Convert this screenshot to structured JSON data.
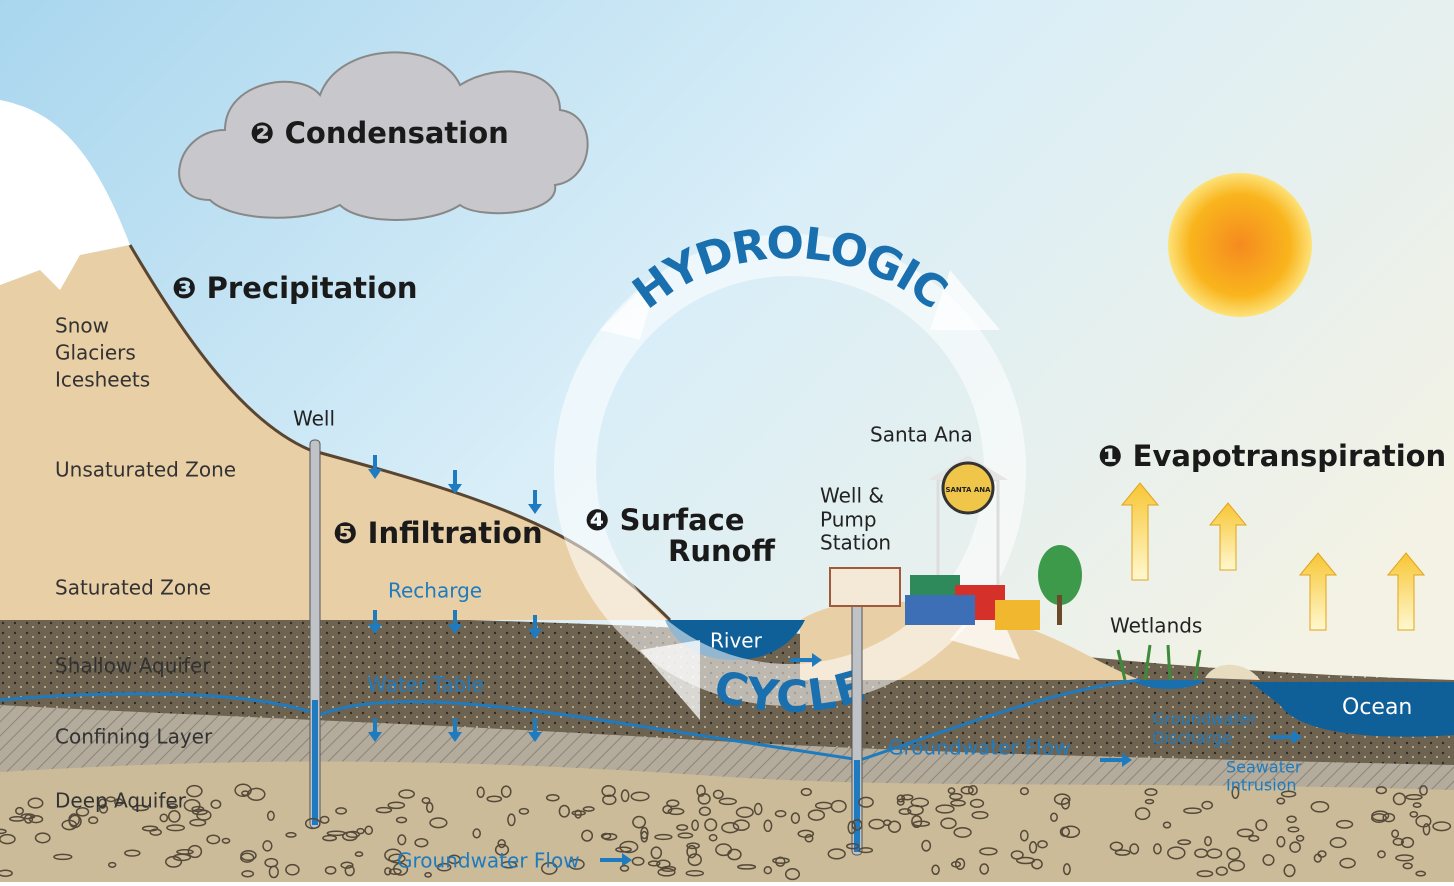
{
  "ring": {
    "top": "HYDROLOGIC",
    "bottom": "CYCLE"
  },
  "steps": {
    "evapotranspiration": "❶ Evapotranspiration",
    "condensation": "❷ Condensation",
    "precipitation": "❸ Precipitation",
    "surface_runoff": [
      "❹ Surface",
      "Runoff"
    ],
    "infiltration": "❺ Infiltration"
  },
  "zones": [
    "Snow",
    "Glaciers",
    "Icesheets",
    "Unsaturated Zone",
    "Saturated Zone",
    "Shallow Aquifer",
    "Confining Layer",
    "Deep Aquifer"
  ],
  "labels": {
    "well": "Well",
    "well_pump_station": [
      "Well &",
      "Pump",
      "Station"
    ],
    "city": "Santa Ana",
    "tower_sign": "SANTA ANA",
    "wetlands": "Wetlands",
    "ocean": "Ocean",
    "river": "River",
    "recharge": "Recharge",
    "water_table": "Water Table",
    "groundwater_flow_mid": "Groundwater Flow",
    "groundwater_flow_bottom": "Groundwater Flow",
    "groundwater_discharge": [
      "Groundwater",
      "Discharge"
    ],
    "seawater_intrusion": [
      "Seawater",
      "Intrusion"
    ]
  }
}
